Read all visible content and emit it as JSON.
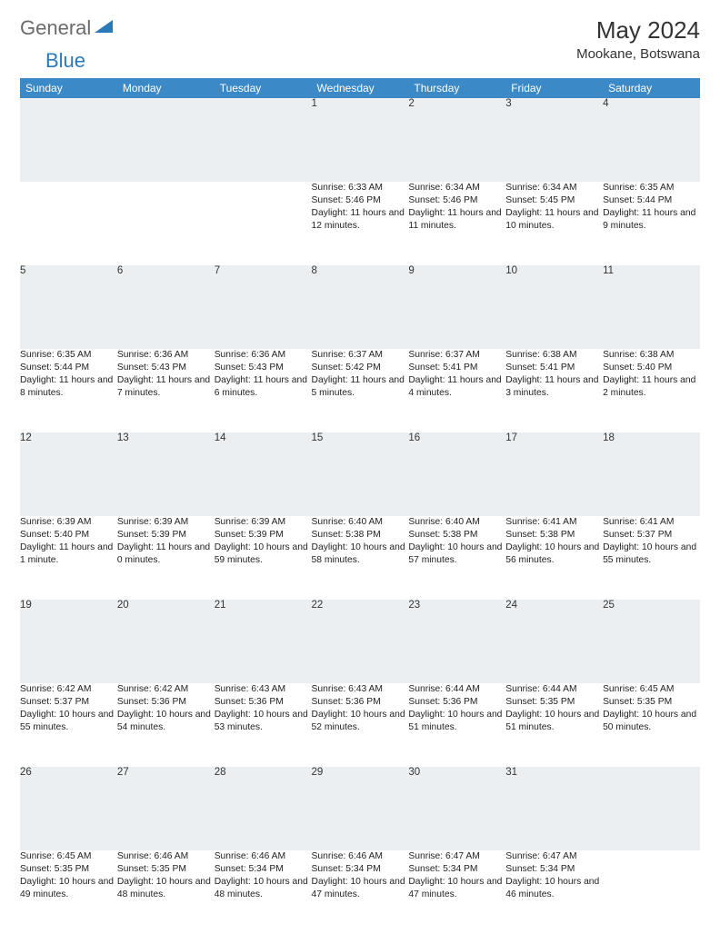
{
  "logo": {
    "general": "General",
    "blue": "Blue"
  },
  "title": "May 2024",
  "location": "Mookane, Botswana",
  "colors": {
    "header_bg": "#3b89c7",
    "header_text": "#ffffff",
    "daynum_bg": "#eceff1",
    "border": "#3b89c7",
    "logo_gray": "#6b6b6b",
    "logo_blue": "#2a7ab9"
  },
  "weekdays": [
    "Sunday",
    "Monday",
    "Tuesday",
    "Wednesday",
    "Thursday",
    "Friday",
    "Saturday"
  ],
  "weeks": [
    [
      null,
      null,
      null,
      {
        "n": "1",
        "sr": "Sunrise: 6:33 AM",
        "ss": "Sunset: 5:46 PM",
        "dl": "Daylight: 11 hours and 12 minutes."
      },
      {
        "n": "2",
        "sr": "Sunrise: 6:34 AM",
        "ss": "Sunset: 5:46 PM",
        "dl": "Daylight: 11 hours and 11 minutes."
      },
      {
        "n": "3",
        "sr": "Sunrise: 6:34 AM",
        "ss": "Sunset: 5:45 PM",
        "dl": "Daylight: 11 hours and 10 minutes."
      },
      {
        "n": "4",
        "sr": "Sunrise: 6:35 AM",
        "ss": "Sunset: 5:44 PM",
        "dl": "Daylight: 11 hours and 9 minutes."
      }
    ],
    [
      {
        "n": "5",
        "sr": "Sunrise: 6:35 AM",
        "ss": "Sunset: 5:44 PM",
        "dl": "Daylight: 11 hours and 8 minutes."
      },
      {
        "n": "6",
        "sr": "Sunrise: 6:36 AM",
        "ss": "Sunset: 5:43 PM",
        "dl": "Daylight: 11 hours and 7 minutes."
      },
      {
        "n": "7",
        "sr": "Sunrise: 6:36 AM",
        "ss": "Sunset: 5:43 PM",
        "dl": "Daylight: 11 hours and 6 minutes."
      },
      {
        "n": "8",
        "sr": "Sunrise: 6:37 AM",
        "ss": "Sunset: 5:42 PM",
        "dl": "Daylight: 11 hours and 5 minutes."
      },
      {
        "n": "9",
        "sr": "Sunrise: 6:37 AM",
        "ss": "Sunset: 5:41 PM",
        "dl": "Daylight: 11 hours and 4 minutes."
      },
      {
        "n": "10",
        "sr": "Sunrise: 6:38 AM",
        "ss": "Sunset: 5:41 PM",
        "dl": "Daylight: 11 hours and 3 minutes."
      },
      {
        "n": "11",
        "sr": "Sunrise: 6:38 AM",
        "ss": "Sunset: 5:40 PM",
        "dl": "Daylight: 11 hours and 2 minutes."
      }
    ],
    [
      {
        "n": "12",
        "sr": "Sunrise: 6:39 AM",
        "ss": "Sunset: 5:40 PM",
        "dl": "Daylight: 11 hours and 1 minute."
      },
      {
        "n": "13",
        "sr": "Sunrise: 6:39 AM",
        "ss": "Sunset: 5:39 PM",
        "dl": "Daylight: 11 hours and 0 minutes."
      },
      {
        "n": "14",
        "sr": "Sunrise: 6:39 AM",
        "ss": "Sunset: 5:39 PM",
        "dl": "Daylight: 10 hours and 59 minutes."
      },
      {
        "n": "15",
        "sr": "Sunrise: 6:40 AM",
        "ss": "Sunset: 5:38 PM",
        "dl": "Daylight: 10 hours and 58 minutes."
      },
      {
        "n": "16",
        "sr": "Sunrise: 6:40 AM",
        "ss": "Sunset: 5:38 PM",
        "dl": "Daylight: 10 hours and 57 minutes."
      },
      {
        "n": "17",
        "sr": "Sunrise: 6:41 AM",
        "ss": "Sunset: 5:38 PM",
        "dl": "Daylight: 10 hours and 56 minutes."
      },
      {
        "n": "18",
        "sr": "Sunrise: 6:41 AM",
        "ss": "Sunset: 5:37 PM",
        "dl": "Daylight: 10 hours and 55 minutes."
      }
    ],
    [
      {
        "n": "19",
        "sr": "Sunrise: 6:42 AM",
        "ss": "Sunset: 5:37 PM",
        "dl": "Daylight: 10 hours and 55 minutes."
      },
      {
        "n": "20",
        "sr": "Sunrise: 6:42 AM",
        "ss": "Sunset: 5:36 PM",
        "dl": "Daylight: 10 hours and 54 minutes."
      },
      {
        "n": "21",
        "sr": "Sunrise: 6:43 AM",
        "ss": "Sunset: 5:36 PM",
        "dl": "Daylight: 10 hours and 53 minutes."
      },
      {
        "n": "22",
        "sr": "Sunrise: 6:43 AM",
        "ss": "Sunset: 5:36 PM",
        "dl": "Daylight: 10 hours and 52 minutes."
      },
      {
        "n": "23",
        "sr": "Sunrise: 6:44 AM",
        "ss": "Sunset: 5:36 PM",
        "dl": "Daylight: 10 hours and 51 minutes."
      },
      {
        "n": "24",
        "sr": "Sunrise: 6:44 AM",
        "ss": "Sunset: 5:35 PM",
        "dl": "Daylight: 10 hours and 51 minutes."
      },
      {
        "n": "25",
        "sr": "Sunrise: 6:45 AM",
        "ss": "Sunset: 5:35 PM",
        "dl": "Daylight: 10 hours and 50 minutes."
      }
    ],
    [
      {
        "n": "26",
        "sr": "Sunrise: 6:45 AM",
        "ss": "Sunset: 5:35 PM",
        "dl": "Daylight: 10 hours and 49 minutes."
      },
      {
        "n": "27",
        "sr": "Sunrise: 6:46 AM",
        "ss": "Sunset: 5:35 PM",
        "dl": "Daylight: 10 hours and 48 minutes."
      },
      {
        "n": "28",
        "sr": "Sunrise: 6:46 AM",
        "ss": "Sunset: 5:34 PM",
        "dl": "Daylight: 10 hours and 48 minutes."
      },
      {
        "n": "29",
        "sr": "Sunrise: 6:46 AM",
        "ss": "Sunset: 5:34 PM",
        "dl": "Daylight: 10 hours and 47 minutes."
      },
      {
        "n": "30",
        "sr": "Sunrise: 6:47 AM",
        "ss": "Sunset: 5:34 PM",
        "dl": "Daylight: 10 hours and 47 minutes."
      },
      {
        "n": "31",
        "sr": "Sunrise: 6:47 AM",
        "ss": "Sunset: 5:34 PM",
        "dl": "Daylight: 10 hours and 46 minutes."
      },
      null
    ]
  ]
}
